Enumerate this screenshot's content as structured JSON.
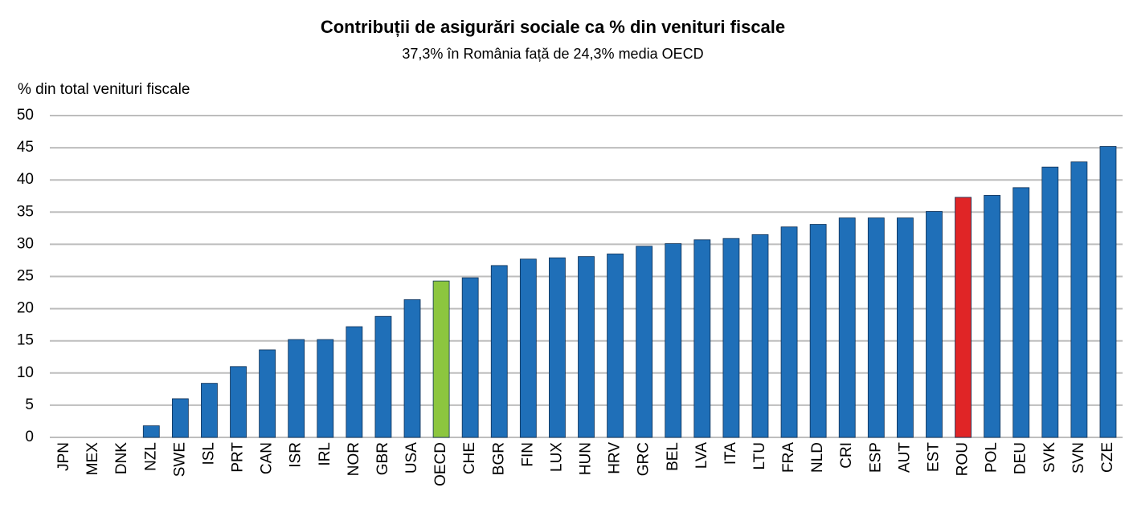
{
  "chart_data": {
    "type": "bar",
    "title": "Contribuții de asigurări sociale ca % din venituri fiscale",
    "subtitle": "37,3% în România față de 24,3% media OECD",
    "y_label": "% din total venituri fiscale",
    "categories": [
      "JPN",
      "MEX",
      "DNK",
      "NZL",
      "SWE",
      "ISL",
      "PRT",
      "CAN",
      "ISR",
      "IRL",
      "NOR",
      "GBR",
      "USA",
      "OECD",
      "CHE",
      "BGR",
      "FIN",
      "LUX",
      "HUN",
      "HRV",
      "GRC",
      "BEL",
      "LVA",
      "ITA",
      "LTU",
      "FRA",
      "NLD",
      "CRI",
      "ESP",
      "AUT",
      "EST",
      "ROU",
      "POL",
      "DEU",
      "SVK",
      "SVN",
      "CZE"
    ],
    "values": [
      0,
      0,
      0,
      1.8,
      6.0,
      8.4,
      11.0,
      13.6,
      15.2,
      15.2,
      17.2,
      18.8,
      21.4,
      24.3,
      24.8,
      26.7,
      27.7,
      27.9,
      28.1,
      28.5,
      29.7,
      30.1,
      30.7,
      30.9,
      31.5,
      32.7,
      33.1,
      34.1,
      34.1,
      34.1,
      35.1,
      37.3,
      37.6,
      38.8,
      42.0,
      42.8,
      45.2
    ],
    "colors": [
      "#1f6fb8",
      "#1f6fb8",
      "#1f6fb8",
      "#1f6fb8",
      "#1f6fb8",
      "#1f6fb8",
      "#1f6fb8",
      "#1f6fb8",
      "#1f6fb8",
      "#1f6fb8",
      "#1f6fb8",
      "#1f6fb8",
      "#1f6fb8",
      "#8cc63f",
      "#1f6fb8",
      "#1f6fb8",
      "#1f6fb8",
      "#1f6fb8",
      "#1f6fb8",
      "#1f6fb8",
      "#1f6fb8",
      "#1f6fb8",
      "#1f6fb8",
      "#1f6fb8",
      "#1f6fb8",
      "#1f6fb8",
      "#1f6fb8",
      "#1f6fb8",
      "#1f6fb8",
      "#1f6fb8",
      "#1f6fb8",
      "#e02526",
      "#1f6fb8",
      "#1f6fb8",
      "#1f6fb8",
      "#1f6fb8",
      "#1f6fb8"
    ],
    "ylim": [
      0,
      50
    ],
    "yticks": [
      0,
      5,
      10,
      15,
      20,
      25,
      30,
      35,
      40,
      45,
      50
    ],
    "grid": true
  }
}
